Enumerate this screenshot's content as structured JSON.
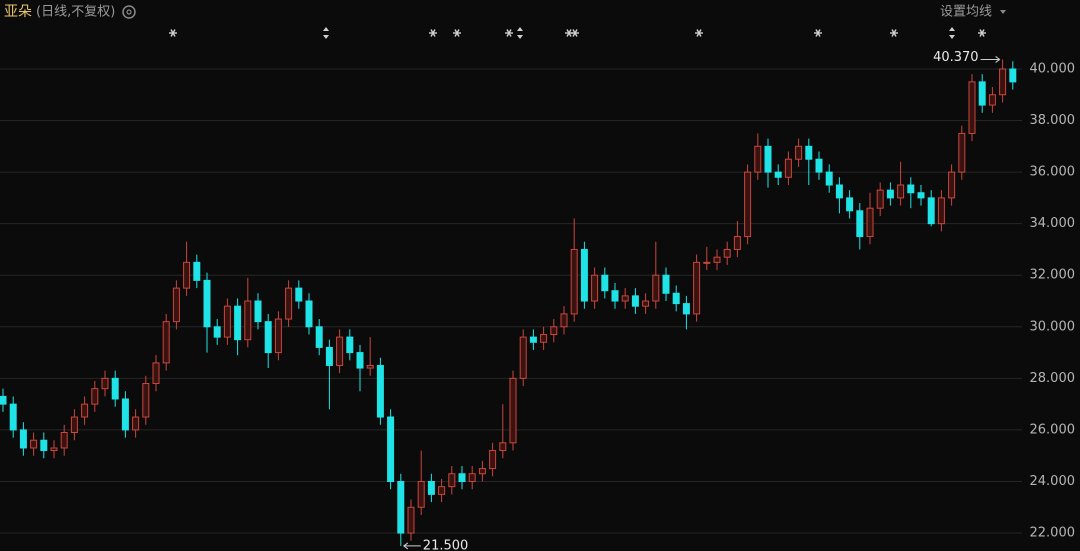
{
  "chart_data": {
    "type": "candlestick",
    "title": "亚朵",
    "subtitle": "(日线,不复权)",
    "menu_label": "设置均线",
    "up_color": "#c9473d",
    "down_color": "#1fe3e6",
    "open": [
      27.3,
      27.0,
      26.0,
      25.3,
      25.6,
      25.2,
      25.3,
      25.9,
      26.5,
      27.0,
      27.6,
      28.0,
      27.2,
      26.0,
      26.5,
      27.8,
      28.6,
      30.2,
      31.5,
      32.5,
      31.8,
      30.0,
      29.6,
      30.8,
      29.5,
      31.0,
      30.2,
      29.0,
      30.3,
      31.5,
      31.0,
      30.0,
      29.2,
      28.5,
      29.6,
      29.0,
      28.4,
      28.5,
      26.5,
      24.0,
      22.0,
      23.0,
      24.0,
      23.5,
      23.8,
      24.3,
      24.0,
      24.3,
      24.5,
      25.2,
      25.5,
      28.0,
      29.6,
      29.4,
      29.7,
      30.0,
      30.5,
      33.0,
      31.0,
      32.0,
      31.4,
      31.0,
      31.2,
      30.8,
      31.0,
      32.0,
      31.3,
      30.9,
      30.5,
      32.5,
      32.5,
      32.7,
      33.0,
      33.5,
      36.0,
      37.0,
      36.0,
      35.8,
      36.5,
      37.0,
      36.5,
      36.0,
      35.5,
      35.0,
      34.5,
      33.5,
      34.6,
      35.3,
      35.0,
      35.5,
      35.2,
      35.0,
      34.0,
      35.0,
      36.0,
      37.5,
      39.5,
      38.6,
      39.0,
      40.0
    ],
    "high": [
      27.6,
      27.3,
      26.3,
      25.9,
      25.9,
      25.6,
      26.2,
      26.8,
      27.3,
      27.9,
      28.3,
      28.3,
      27.5,
      26.8,
      28.1,
      28.9,
      30.5,
      31.8,
      33.3,
      32.8,
      32.1,
      30.3,
      31.1,
      31.1,
      31.9,
      31.3,
      30.5,
      30.6,
      31.8,
      31.8,
      31.3,
      30.3,
      29.5,
      29.9,
      29.9,
      29.3,
      29.6,
      28.8,
      26.8,
      24.3,
      23.3,
      25.2,
      24.3,
      24.1,
      24.6,
      24.6,
      24.6,
      24.8,
      25.5,
      27.0,
      28.3,
      29.9,
      29.9,
      30.0,
      30.3,
      30.8,
      34.2,
      33.3,
      32.3,
      32.3,
      31.7,
      31.5,
      31.5,
      31.3,
      33.3,
      32.3,
      31.6,
      31.2,
      32.8,
      33.1,
      33.0,
      33.3,
      34.1,
      36.3,
      37.5,
      37.3,
      36.3,
      36.8,
      37.3,
      37.3,
      36.8,
      36.3,
      35.8,
      35.3,
      34.8,
      35.2,
      35.6,
      35.6,
      36.4,
      35.8,
      35.5,
      35.3,
      35.3,
      36.3,
      37.8,
      39.8,
      39.8,
      39.3,
      40.37,
      40.3
    ],
    "low": [
      26.7,
      25.7,
      25.0,
      25.0,
      24.9,
      24.9,
      25.0,
      25.6,
      26.2,
      26.7,
      27.3,
      26.9,
      25.7,
      25.7,
      26.2,
      27.5,
      28.3,
      29.9,
      31.2,
      31.5,
      29.0,
      29.3,
      29.3,
      28.9,
      29.2,
      29.9,
      28.4,
      28.7,
      30.0,
      30.7,
      29.7,
      28.9,
      26.8,
      28.2,
      28.7,
      27.5,
      28.1,
      26.2,
      23.7,
      21.5,
      21.7,
      22.7,
      23.2,
      23.2,
      23.5,
      23.7,
      23.7,
      24.0,
      24.2,
      24.9,
      25.2,
      27.7,
      29.1,
      29.1,
      29.4,
      29.7,
      30.2,
      30.7,
      30.7,
      31.1,
      30.7,
      30.7,
      30.5,
      30.5,
      30.7,
      31.0,
      30.6,
      29.9,
      30.2,
      32.2,
      32.2,
      32.4,
      32.7,
      33.2,
      35.7,
      35.4,
      35.5,
      35.5,
      36.2,
      35.5,
      35.7,
      35.2,
      34.4,
      34.2,
      33.0,
      33.2,
      34.3,
      34.7,
      34.7,
      34.6,
      34.7,
      33.9,
      33.7,
      34.7,
      35.7,
      37.2,
      38.3,
      38.3,
      38.7,
      39.2
    ],
    "close": [
      27.0,
      26.0,
      25.3,
      25.6,
      25.2,
      25.3,
      25.9,
      26.5,
      27.0,
      27.6,
      28.0,
      27.2,
      26.0,
      26.5,
      27.8,
      28.6,
      30.2,
      31.5,
      32.5,
      31.8,
      30.0,
      29.6,
      30.8,
      29.5,
      31.0,
      30.2,
      29.0,
      30.3,
      31.5,
      31.0,
      30.0,
      29.2,
      28.5,
      29.6,
      29.0,
      28.4,
      28.5,
      26.5,
      24.0,
      22.0,
      23.0,
      24.0,
      23.5,
      23.8,
      24.3,
      24.0,
      24.3,
      24.5,
      25.2,
      25.5,
      28.0,
      29.6,
      29.4,
      29.7,
      30.0,
      30.5,
      33.0,
      31.0,
      32.0,
      31.4,
      31.0,
      31.2,
      30.8,
      31.0,
      32.0,
      31.3,
      30.9,
      30.5,
      32.5,
      32.5,
      32.7,
      33.0,
      33.5,
      36.0,
      37.0,
      36.0,
      35.8,
      36.5,
      37.0,
      36.5,
      36.0,
      35.5,
      35.0,
      34.5,
      33.5,
      34.6,
      35.3,
      35.0,
      35.5,
      35.2,
      35.0,
      34.0,
      35.0,
      36.0,
      37.5,
      39.5,
      38.6,
      39.0,
      40.0,
      39.5
    ],
    "max_marker": {
      "value": 40.37,
      "label": "40.370"
    },
    "min_marker": {
      "value": 21.5,
      "label": "21.500"
    },
    "ylim": [
      21.42,
      40.93
    ],
    "yticks": [
      {
        "value": 22,
        "label": "22.000"
      },
      {
        "value": 24,
        "label": "24.000"
      },
      {
        "value": 26,
        "label": "26.000"
      },
      {
        "value": 28,
        "label": "28.000"
      },
      {
        "value": 30,
        "label": "30.000"
      },
      {
        "value": 32,
        "label": "32.000"
      },
      {
        "value": 34,
        "label": "34.000"
      },
      {
        "value": 36,
        "label": "36.000"
      },
      {
        "value": 38,
        "label": "38.000"
      },
      {
        "value": 40,
        "label": "40.000"
      }
    ],
    "grid": true
  }
}
